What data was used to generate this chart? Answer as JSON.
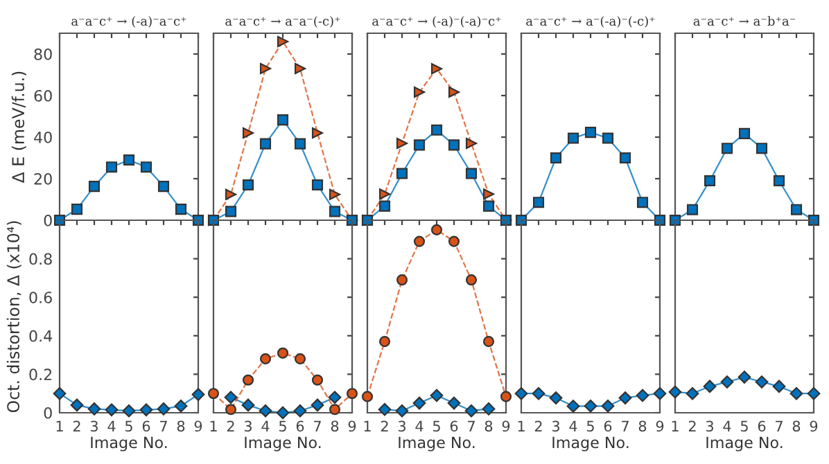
{
  "chart_data": [
    {
      "type": "line",
      "title": "a⁻a⁻c⁺ → (-a)⁻a⁻c⁺",
      "ylabel": "Δ E (meV/f.u.)",
      "x": [
        1,
        2,
        3,
        4,
        5,
        6,
        7,
        8,
        9
      ],
      "xlim": [
        1,
        9
      ],
      "xticks": [
        1,
        2,
        3,
        4,
        5,
        6,
        7,
        8,
        9
      ],
      "ylim": [
        0,
        90
      ],
      "yticks": [
        0,
        20,
        40,
        60,
        80
      ],
      "tick_labels": "y",
      "series": [
        {
          "color": "#0072bd",
          "marker": "square",
          "line_style": "solid",
          "values": [
            0,
            5.3,
            16.3,
            25.6,
            29,
            25.6,
            16.3,
            5.3,
            0
          ]
        }
      ]
    },
    {
      "type": "line",
      "title": "a⁻a⁻c⁺ → a⁻a⁻(-c)⁺",
      "x": [
        1,
        2,
        3,
        4,
        5,
        6,
        7,
        8,
        9
      ],
      "xlim": [
        1,
        9
      ],
      "xticks": [
        1,
        2,
        3,
        4,
        5,
        6,
        7,
        8,
        9
      ],
      "ylim": [
        0,
        90
      ],
      "yticks": [
        0,
        20,
        40,
        60,
        80
      ],
      "tick_labels": false,
      "series": [
        {
          "color": "#d95319",
          "marker": "triangle",
          "line_style": "dashed",
          "values": [
            0,
            12.4,
            42,
            73,
            86,
            73,
            42,
            12.4,
            0
          ]
        },
        {
          "color": "#0072bd",
          "marker": "square",
          "line_style": "solid",
          "values": [
            0,
            4.2,
            17,
            36.8,
            48.3,
            36.8,
            17,
            4.2,
            0
          ]
        }
      ]
    },
    {
      "type": "line",
      "title": "a⁻a⁻c⁺ → (-a)⁻(-a)⁻c⁺",
      "x": [
        1,
        2,
        3,
        4,
        5,
        6,
        7,
        8,
        9
      ],
      "xlim": [
        1,
        9
      ],
      "xticks": [
        1,
        2,
        3,
        4,
        5,
        6,
        7,
        8,
        9
      ],
      "ylim": [
        0,
        90
      ],
      "yticks": [
        0,
        20,
        40,
        60,
        80
      ],
      "tick_labels": false,
      "series": [
        {
          "color": "#d95319",
          "marker": "triangle",
          "line_style": "dashed",
          "values": [
            0,
            12.6,
            37,
            61.7,
            72.9,
            61.7,
            37,
            12.6,
            0
          ]
        },
        {
          "color": "#0072bd",
          "marker": "square",
          "line_style": "solid",
          "values": [
            0,
            6.8,
            22.5,
            36.2,
            43.4,
            36.2,
            22.5,
            6.8,
            0
          ]
        }
      ]
    },
    {
      "type": "line",
      "title": "a⁻a⁻c⁺ → a⁻(-a)⁻(-c)⁺",
      "x": [
        1,
        2,
        3,
        4,
        5,
        6,
        7,
        8,
        9
      ],
      "xlim": [
        1,
        9
      ],
      "xticks": [
        1,
        2,
        3,
        4,
        5,
        6,
        7,
        8,
        9
      ],
      "ylim": [
        0,
        90
      ],
      "yticks": [
        0,
        20,
        40,
        60,
        80
      ],
      "tick_labels": false,
      "series": [
        {
          "color": "#0072bd",
          "marker": "square",
          "line_style": "solid",
          "values": [
            0,
            8.6,
            30,
            39.5,
            42.3,
            39.5,
            30,
            8.6,
            0
          ]
        }
      ]
    },
    {
      "type": "line",
      "title": "a⁻a⁻c⁺ → a⁻b⁺a⁻",
      "x": [
        1,
        2,
        3,
        4,
        5,
        6,
        7,
        8,
        9
      ],
      "xlim": [
        1,
        9
      ],
      "xticks": [
        1,
        2,
        3,
        4,
        5,
        6,
        7,
        8,
        9
      ],
      "ylim": [
        0,
        90
      ],
      "yticks": [
        0,
        20,
        40,
        60,
        80
      ],
      "tick_labels": false,
      "series": [
        {
          "color": "#0072bd",
          "marker": "square",
          "line_style": "solid",
          "values": [
            0,
            5.1,
            19,
            34.6,
            41.7,
            34.6,
            19,
            5.1,
            0
          ]
        }
      ]
    },
    {
      "type": "line",
      "ylabel": "Oct. distortion, Δ (x10⁴)",
      "xlabel": "Image No.",
      "x": [
        1,
        2,
        3,
        4,
        5,
        6,
        7,
        8,
        9
      ],
      "xlim": [
        1,
        9
      ],
      "xticks": [
        1,
        2,
        3,
        4,
        5,
        6,
        7,
        8,
        9
      ],
      "ylim": [
        0,
        1
      ],
      "yticks": [
        0,
        0.2,
        0.4,
        0.6,
        0.8
      ],
      "series": [
        {
          "color": "#0072bd",
          "marker": "diamond",
          "line_style": "solid",
          "values": [
            0.1,
            0.04,
            0.02,
            0.015,
            0.01,
            0.015,
            0.02,
            0.035,
            0.095
          ]
        }
      ]
    },
    {
      "type": "line",
      "xlabel": "Image No.",
      "x": [
        1,
        2,
        3,
        4,
        5,
        6,
        7,
        8,
        9
      ],
      "xlim": [
        1,
        9
      ],
      "xticks": [
        1,
        2,
        3,
        4,
        5,
        6,
        7,
        8,
        9
      ],
      "ylim": [
        0,
        1
      ],
      "yticks": [
        0,
        0.2,
        0.4,
        0.6,
        0.8
      ],
      "tick_labels": "x",
      "series": [
        {
          "color": "#0072bd",
          "marker": "diamond",
          "line_style": "solid",
          "values": [
            null,
            0.08,
            0.04,
            0.01,
            0,
            0.01,
            0.04,
            0.08,
            null
          ]
        },
        {
          "color": "#d95319",
          "marker": "circle",
          "line_style": "dashed",
          "values": [
            0.1,
            0.017,
            0.17,
            0.28,
            0.31,
            0.28,
            0.17,
            0.017,
            0.1
          ]
        }
      ]
    },
    {
      "type": "line",
      "xlabel": "Image No.",
      "x": [
        1,
        2,
        3,
        4,
        5,
        6,
        7,
        8,
        9
      ],
      "xlim": [
        1,
        9
      ],
      "xticks": [
        1,
        2,
        3,
        4,
        5,
        6,
        7,
        8,
        9
      ],
      "ylim": [
        0,
        1
      ],
      "yticks": [
        0,
        0.2,
        0.4,
        0.6,
        0.8
      ],
      "tick_labels": "x",
      "series": [
        {
          "color": "#0072bd",
          "marker": "diamond",
          "line_style": "solid",
          "values": [
            null,
            0.017,
            0.01,
            0.05,
            0.09,
            0.05,
            0.01,
            0.02,
            null
          ]
        },
        {
          "color": "#d95319",
          "marker": "circle",
          "line_style": "dashed",
          "values": [
            0.084,
            0.37,
            0.69,
            0.89,
            0.95,
            0.89,
            0.69,
            0.37,
            0.084
          ]
        }
      ]
    },
    {
      "type": "line",
      "xlabel": "Image No.",
      "x": [
        1,
        2,
        3,
        4,
        5,
        6,
        7,
        8,
        9
      ],
      "xlim": [
        1,
        9
      ],
      "xticks": [
        1,
        2,
        3,
        4,
        5,
        6,
        7,
        8,
        9
      ],
      "ylim": [
        0,
        1
      ],
      "yticks": [
        0,
        0.2,
        0.4,
        0.6,
        0.8
      ],
      "tick_labels": "x",
      "series": [
        {
          "color": "#0072bd",
          "marker": "diamond",
          "line_style": "solid",
          "values": [
            0.1,
            0.1,
            0.077,
            0.034,
            0.035,
            0.035,
            0.077,
            0.09,
            0.1
          ]
        }
      ]
    },
    {
      "type": "line",
      "xlabel": "Image No.",
      "x": [
        1,
        2,
        3,
        4,
        5,
        6,
        7,
        8,
        9
      ],
      "xlim": [
        1,
        9
      ],
      "xticks": [
        1,
        2,
        3,
        4,
        5,
        6,
        7,
        8,
        9
      ],
      "ylim": [
        0,
        1
      ],
      "yticks": [
        0,
        0.2,
        0.4,
        0.6,
        0.8
      ],
      "tick_labels": "x",
      "series": [
        {
          "color": "#0072bd",
          "marker": "diamond",
          "line_style": "solid",
          "values": [
            0.108,
            0.1,
            0.137,
            0.16,
            0.185,
            0.16,
            0.137,
            0.1,
            0.1
          ]
        }
      ]
    }
  ]
}
